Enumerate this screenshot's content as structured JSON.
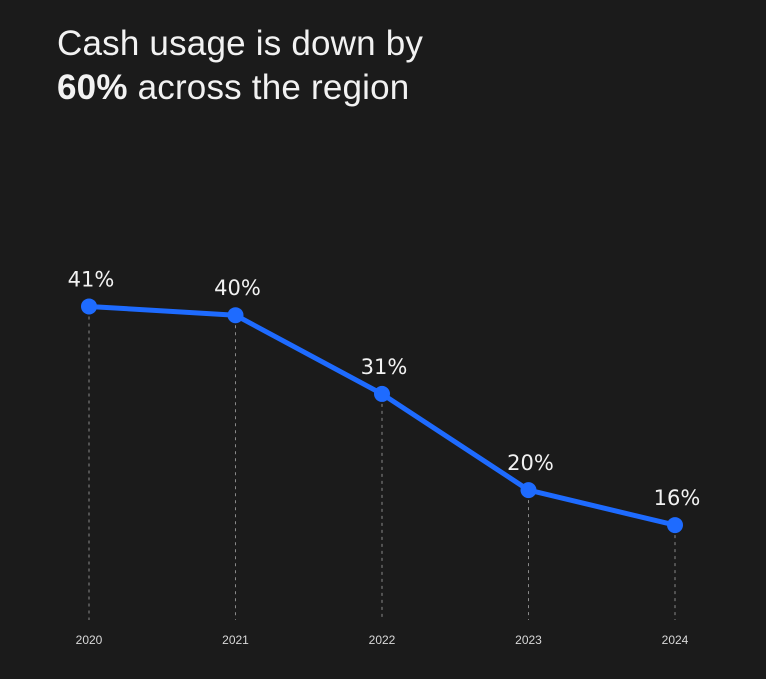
{
  "title": {
    "line1": "Cash usage is down by",
    "highlight": "60%",
    "line2_rest": " across the region"
  },
  "colors": {
    "background": "#1b1b1b",
    "line": "#1e6bff",
    "text": "#f2f2f2",
    "guide": "#8a8a8a"
  },
  "chart_data": {
    "type": "line",
    "categories": [
      "2020",
      "2021",
      "2022",
      "2023",
      "2024"
    ],
    "values": [
      41,
      40,
      31,
      20,
      16
    ],
    "data_labels": [
      "41%",
      "40%",
      "31%",
      "20%",
      "16%"
    ],
    "unit": "%",
    "ylim": [
      0,
      47
    ],
    "grid": false,
    "legend": "none",
    "guides": "dashed vertical drop lines from each point to the x-axis"
  }
}
